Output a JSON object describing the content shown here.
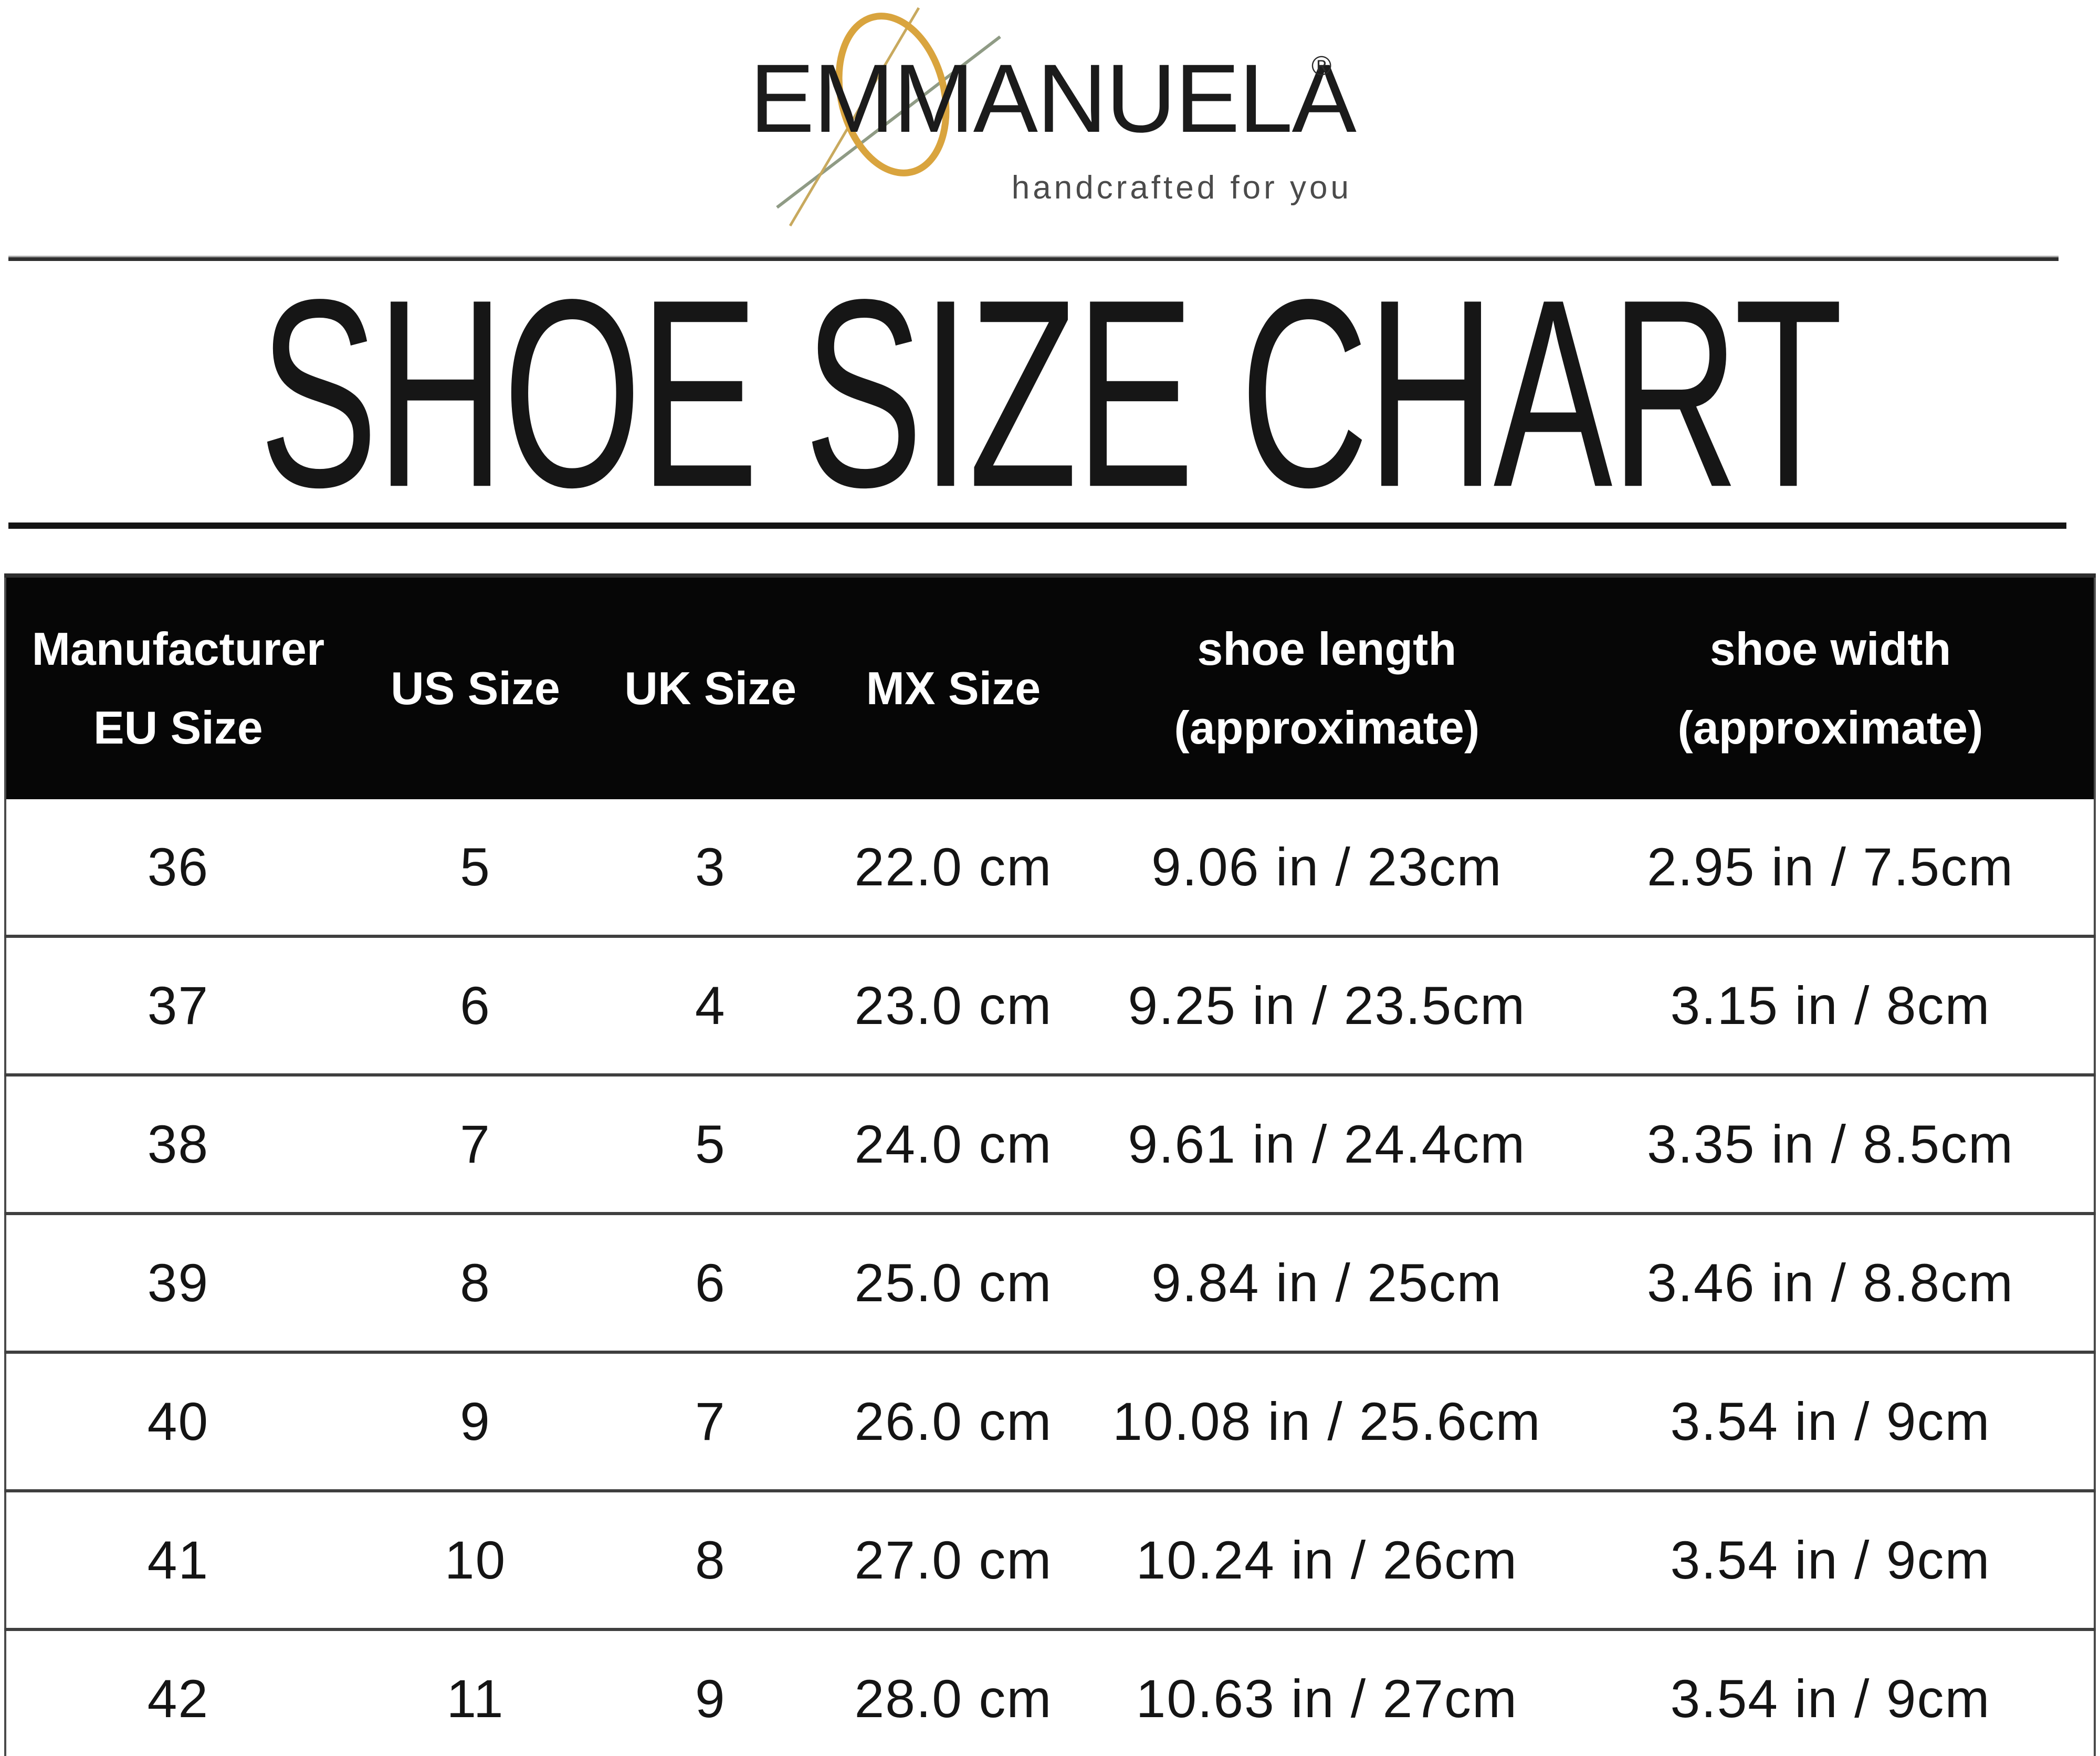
{
  "brand": {
    "name": "EMMANUELA",
    "registered_mark": "®",
    "tagline": "handcrafted for you"
  },
  "title": "SHOE SIZE CHART",
  "chart_data": {
    "type": "table",
    "title": "SHOE SIZE CHART",
    "columns": [
      "Manufacturer EU Size",
      "US Size",
      "UK Size",
      "MX Size",
      "shoe length (approximate)",
      "shoe width (approximate)"
    ],
    "header_lines": [
      [
        "Manufacturer",
        "EU Size"
      ],
      [
        "US Size"
      ],
      [
        "UK Size"
      ],
      [
        "MX Size"
      ],
      [
        "shoe length",
        "(approximate)"
      ],
      [
        "shoe width",
        "(approximate)"
      ]
    ],
    "rows": [
      [
        "36",
        "5",
        "3",
        "22.0 cm",
        "9.06 in / 23cm",
        "2.95 in / 7.5cm"
      ],
      [
        "37",
        "6",
        "4",
        "23.0 cm",
        "9.25 in / 23.5cm",
        "3.15 in / 8cm"
      ],
      [
        "38",
        "7",
        "5",
        "24.0 cm",
        "9.61 in / 24.4cm",
        "3.35 in / 8.5cm"
      ],
      [
        "39",
        "8",
        "6",
        "25.0 cm",
        "9.84 in / 25cm",
        "3.46 in / 8.8cm"
      ],
      [
        "40",
        "9",
        "7",
        "26.0 cm",
        "10.08 in / 25.6cm",
        "3.54 in / 9cm"
      ],
      [
        "41",
        "10",
        "8",
        "27.0 cm",
        "10.24 in / 26cm",
        "3.54 in / 9cm"
      ],
      [
        "42",
        "11",
        "9",
        "28.0 cm",
        "10.63 in / 27cm",
        "3.54 in / 9cm"
      ]
    ]
  },
  "colors": {
    "header_bg": "#060606",
    "header_text": "#ffffff",
    "accent_gold": "#d9a43e",
    "needle_gray": "#8f9b85",
    "rule_dark": "#3c3c3c",
    "tagline_gray": "#4b4b4b",
    "body_text": "#141414"
  }
}
